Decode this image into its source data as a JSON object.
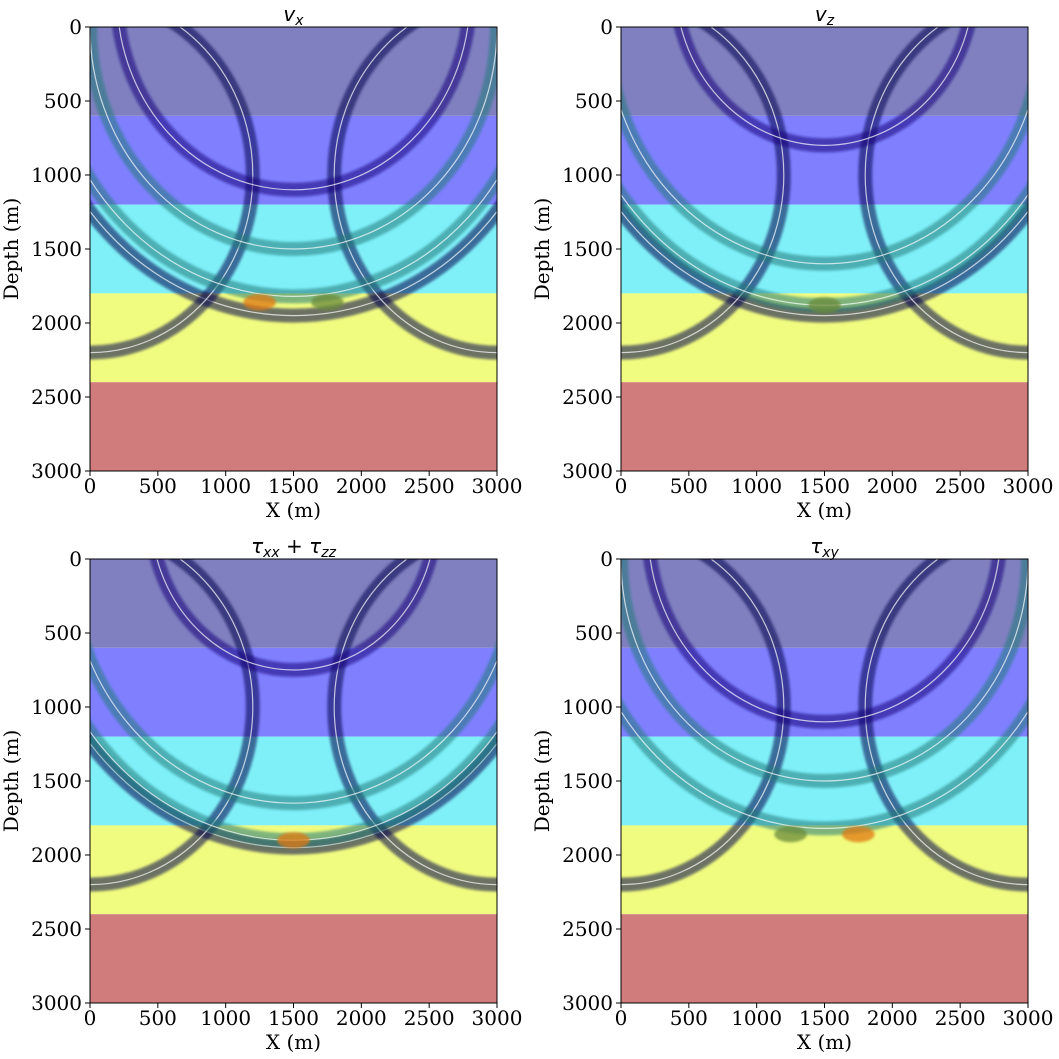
{
  "figure": {
    "layer_colors": [
      "#8080c0",
      "#8080ff",
      "#80f0f8",
      "#f0fc80",
      "#d07c7c"
    ],
    "wave_colors": {
      "dark": "#0a0a4a",
      "deep": "#1a0b7a",
      "teal": "#1e7a7a",
      "orange": "#e0780c",
      "olive": "#6a8a3a",
      "red": "#a01010"
    }
  },
  "chart_data": [
    {
      "type": "heatmap",
      "title": "v_x",
      "title_base": "v",
      "title_sub": "x",
      "xlabel": "X (m)",
      "ylabel": "Depth (m)",
      "xlim": [
        0,
        3000
      ],
      "ylim": [
        3000,
        0
      ],
      "xticks": [
        "0",
        "500",
        "1000",
        "1500",
        "2000",
        "2500",
        "3000"
      ],
      "yticks": [
        "0",
        "500",
        "1000",
        "1500",
        "2000",
        "2500",
        "3000"
      ],
      "layer_boundaries_m": [
        0,
        600,
        1200,
        1800,
        2400,
        3000
      ],
      "wavefronts": [
        {
          "kind": "arc",
          "cx": 1500,
          "cz": 0,
          "r": 1950,
          "color": "dark"
        },
        {
          "kind": "arc",
          "cx": 0,
          "cz": 1000,
          "r": 1200,
          "color": "dark"
        },
        {
          "kind": "arc",
          "cx": 3000,
          "cz": 1000,
          "r": 1200,
          "color": "dark"
        },
        {
          "kind": "arc",
          "cx": 1500,
          "cz": -200,
          "r": 1300,
          "color": "deep"
        },
        {
          "kind": "arc",
          "cx": 1500,
          "cz": 0,
          "r": 1820,
          "color": "teal"
        },
        {
          "kind": "arc",
          "cx": 1500,
          "cz": 0,
          "r": 1500,
          "color": "teal"
        },
        {
          "kind": "blob",
          "x": 1250,
          "z": 1860,
          "color": "orange"
        },
        {
          "kind": "blob",
          "x": 1750,
          "z": 1860,
          "color": "olive"
        }
      ]
    },
    {
      "type": "heatmap",
      "title": "v_z",
      "title_base": "v",
      "title_sub": "z",
      "xlabel": "X (m)",
      "ylabel": "Depth (m)",
      "xlim": [
        0,
        3000
      ],
      "ylim": [
        3000,
        0
      ],
      "xticks": [
        "0",
        "500",
        "1000",
        "1500",
        "2000",
        "2500",
        "3000"
      ],
      "yticks": [
        "0",
        "500",
        "1000",
        "1500",
        "2000",
        "2500",
        "3000"
      ],
      "layer_boundaries_m": [
        0,
        600,
        1200,
        1800,
        2400,
        3000
      ],
      "wavefronts": [
        {
          "kind": "arc",
          "cx": 1500,
          "cz": 0,
          "r": 1950,
          "color": "dark"
        },
        {
          "kind": "arc",
          "cx": 0,
          "cz": 1000,
          "r": 1200,
          "color": "dark"
        },
        {
          "kind": "arc",
          "cx": 3000,
          "cz": 1000,
          "r": 1200,
          "color": "dark"
        },
        {
          "kind": "arc",
          "cx": 1500,
          "cz": -300,
          "r": 1100,
          "color": "deep"
        },
        {
          "kind": "arc",
          "cx": 1500,
          "cz": 0,
          "r": 1880,
          "color": "teal"
        },
        {
          "kind": "arc",
          "cx": 1500,
          "cz": 0,
          "r": 1600,
          "color": "teal"
        },
        {
          "kind": "blob",
          "x": 1500,
          "z": 1880,
          "color": "olive"
        }
      ]
    },
    {
      "type": "heatmap",
      "title": "τ_xx + τ_zz",
      "title_base": "τ",
      "title_sub": "xx",
      "title_op": " + ",
      "title_base2": "τ",
      "title_sub2": "zz",
      "xlabel": "X (m)",
      "ylabel": "Depth (m)",
      "xlim": [
        0,
        3000
      ],
      "ylim": [
        3000,
        0
      ],
      "xticks": [
        "0",
        "500",
        "1000",
        "1500",
        "2000",
        "2500",
        "3000"
      ],
      "yticks": [
        "0",
        "500",
        "1000",
        "1500",
        "2000",
        "2500",
        "3000"
      ],
      "layer_boundaries_m": [
        0,
        600,
        1200,
        1800,
        2400,
        3000
      ],
      "wavefronts": [
        {
          "kind": "arc",
          "cx": 1500,
          "cz": 0,
          "r": 1950,
          "color": "dark"
        },
        {
          "kind": "arc",
          "cx": 0,
          "cz": 1000,
          "r": 1200,
          "color": "dark"
        },
        {
          "kind": "arc",
          "cx": 3000,
          "cz": 1000,
          "r": 1200,
          "color": "dark"
        },
        {
          "kind": "arc",
          "cx": 1500,
          "cz": -300,
          "r": 1050,
          "color": "deep"
        },
        {
          "kind": "arc",
          "cx": 1500,
          "cz": 0,
          "r": 1900,
          "color": "teal"
        },
        {
          "kind": "arc",
          "cx": 1500,
          "cz": 0,
          "r": 1650,
          "color": "teal"
        },
        {
          "kind": "blob",
          "x": 1500,
          "z": 1900,
          "color": "orange"
        }
      ]
    },
    {
      "type": "heatmap",
      "title": "τ_xy",
      "title_base": "τ",
      "title_sub": "xy",
      "xlabel": "X (m)",
      "ylabel": "Depth (m)",
      "xlim": [
        0,
        3000
      ],
      "ylim": [
        3000,
        0
      ],
      "xticks": [
        "0",
        "500",
        "1000",
        "1500",
        "2000",
        "2500",
        "3000"
      ],
      "yticks": [
        "0",
        "500",
        "1000",
        "1500",
        "2000",
        "2500",
        "3000"
      ],
      "layer_boundaries_m": [
        0,
        600,
        1200,
        1800,
        2400,
        3000
      ],
      "wavefronts": [
        {
          "kind": "arc",
          "cx": 0,
          "cz": 1000,
          "r": 1200,
          "color": "dark"
        },
        {
          "kind": "arc",
          "cx": 3000,
          "cz": 1000,
          "r": 1200,
          "color": "dark"
        },
        {
          "kind": "arc",
          "cx": 1500,
          "cz": -200,
          "r": 1300,
          "color": "deep"
        },
        {
          "kind": "arc",
          "cx": 1500,
          "cz": 0,
          "r": 1820,
          "color": "teal"
        },
        {
          "kind": "arc",
          "cx": 1500,
          "cz": 0,
          "r": 1500,
          "color": "teal"
        },
        {
          "kind": "blob",
          "x": 1250,
          "z": 1860,
          "color": "olive"
        },
        {
          "kind": "blob",
          "x": 1750,
          "z": 1860,
          "color": "orange"
        }
      ]
    }
  ]
}
